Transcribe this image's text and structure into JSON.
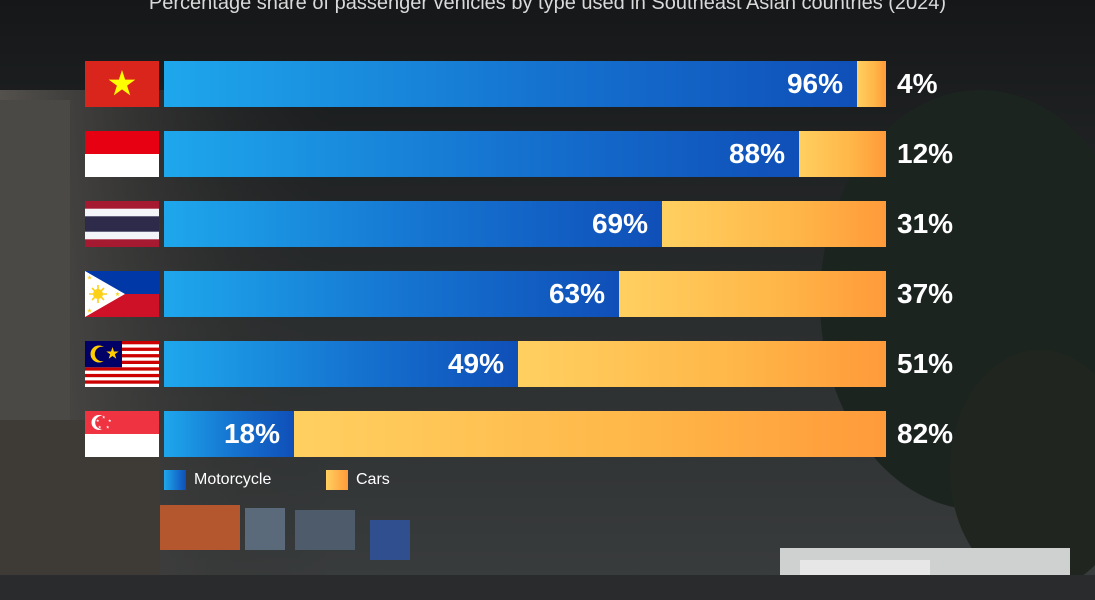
{
  "chart_data": {
    "type": "bar",
    "orientation": "horizontal",
    "stacked": true,
    "title": "Percentage share of passenger vehicles by type used in Southeast Asian countries (2024)",
    "categories": [
      "Vietnam",
      "Indonesia",
      "Thailand",
      "Philippines",
      "Malaysia",
      "Singapore"
    ],
    "category_icons": [
      "flag-vietnam-icon",
      "flag-indonesia-icon",
      "flag-thailand-icon",
      "flag-philippines-icon",
      "flag-malaysia-icon",
      "flag-singapore-icon"
    ],
    "series": [
      {
        "name": "Motorcycle",
        "values": [
          96,
          88,
          69,
          63,
          49,
          18
        ],
        "labels": [
          "96%",
          "88%",
          "69%",
          "63%",
          "49%",
          "18%"
        ],
        "color": "#1572cf"
      },
      {
        "name": "Cars",
        "values": [
          4,
          12,
          31,
          37,
          51,
          82
        ],
        "labels": [
          "4%",
          "12%",
          "31%",
          "37%",
          "51%",
          "82%"
        ],
        "color": "#ffb648"
      }
    ],
    "xlim": [
      0,
      100
    ],
    "legend_position": "bottom-left",
    "grid": false
  }
}
